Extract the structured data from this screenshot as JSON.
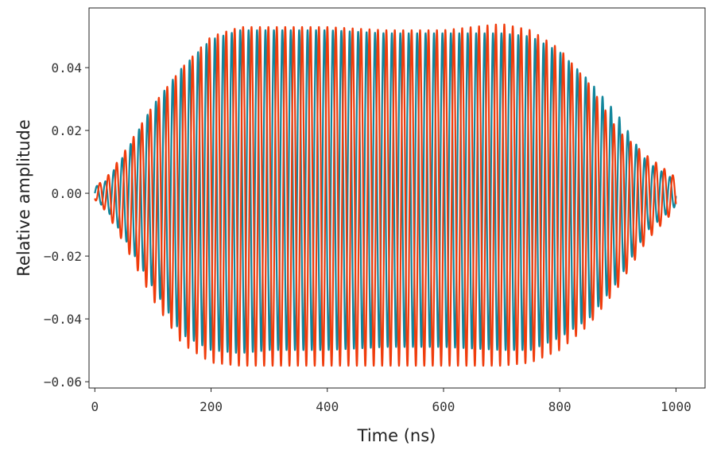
{
  "chart_data": {
    "type": "line",
    "title": "",
    "xlabel": "Time (ns)",
    "ylabel": "Relative amplitude",
    "xlim": [
      -10,
      1050
    ],
    "ylim": [
      -0.062,
      0.059
    ],
    "x_ticks": [
      0,
      200,
      400,
      600,
      800,
      1000
    ],
    "x_tick_labels": [
      "0",
      "200",
      "400",
      "600",
      "800",
      "1000"
    ],
    "y_ticks": [
      0.04,
      0.02,
      0.0,
      -0.02,
      -0.04,
      -0.06
    ],
    "y_tick_labels": [
      "0.04",
      "0.02",
      "0.00",
      "−0.02",
      "−0.04",
      "−0.06"
    ],
    "grid": false,
    "legend": "none",
    "series": [
      {
        "color": "#11859b",
        "x_range": [
          0,
          1000
        ],
        "carrier_period_ns": 14.5,
        "phase_offset_ns": 0,
        "envelope": {
          "t": [
            0,
            20,
            50,
            100,
            150,
            200,
            250,
            300,
            400,
            500,
            600,
            700,
            750,
            800,
            850,
            900,
            950,
            1000
          ],
          "pos": [
            0.002,
            0.004,
            0.012,
            0.028,
            0.04,
            0.049,
            0.052,
            0.052,
            0.052,
            0.051,
            0.051,
            0.051,
            0.05,
            0.045,
            0.036,
            0.025,
            0.01,
            0.004
          ],
          "neg": [
            -0.002,
            -0.005,
            -0.014,
            -0.03,
            -0.045,
            -0.05,
            -0.051,
            -0.05,
            -0.05,
            -0.049,
            -0.049,
            -0.05,
            -0.05,
            -0.046,
            -0.04,
            -0.028,
            -0.012,
            -0.004
          ]
        }
      },
      {
        "color": "#f03c0c",
        "x_range": [
          0,
          1000
        ],
        "carrier_period_ns": 14.5,
        "phase_offset_ns": 5,
        "envelope": {
          "t": [
            0,
            20,
            50,
            100,
            150,
            200,
            250,
            300,
            400,
            500,
            600,
            700,
            750,
            800,
            850,
            900,
            950,
            1000
          ],
          "pos": [
            0.002,
            0.005,
            0.013,
            0.028,
            0.04,
            0.05,
            0.053,
            0.053,
            0.053,
            0.052,
            0.052,
            0.054,
            0.052,
            0.046,
            0.035,
            0.02,
            0.012,
            0.005
          ],
          "neg": [
            -0.002,
            -0.006,
            -0.016,
            -0.034,
            -0.048,
            -0.054,
            -0.055,
            -0.055,
            -0.055,
            -0.055,
            -0.055,
            -0.055,
            -0.054,
            -0.05,
            -0.042,
            -0.03,
            -0.015,
            -0.005
          ]
        }
      }
    ]
  }
}
